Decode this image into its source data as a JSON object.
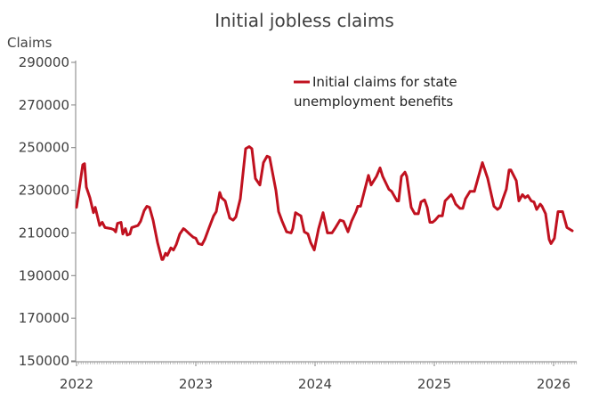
{
  "chart_data": {
    "type": "line",
    "title": "Initial jobless claims",
    "ylabel": "Claims",
    "xlabel": "",
    "ylim": [
      150000,
      290000
    ],
    "xlim": [
      2022.0,
      2026.2
    ],
    "yticks": [
      "150000",
      "170000",
      "190000",
      "210000",
      "230000",
      "250000",
      "270000",
      "290000"
    ],
    "xticks": [
      {
        "label": "2022",
        "value": 2022
      },
      {
        "label": "2023",
        "value": 2023
      },
      {
        "label": "2024",
        "value": 2024
      },
      {
        "label": "2025",
        "value": 2025
      },
      {
        "label": "2026",
        "value": 2026
      }
    ],
    "grid": false,
    "legend_position": "top-right",
    "colors": {
      "line": "#c0111f",
      "axis": "#7f7f7f",
      "text": "#404040"
    },
    "series": [
      {
        "name_lines": [
          "Initial claims for state",
          "unemployment benefits"
        ],
        "points": [
          [
            2022.0,
            222000
          ],
          [
            2022.052,
            242000
          ],
          [
            2022.067,
            242500
          ],
          [
            2022.082,
            231500
          ],
          [
            2022.112,
            226500
          ],
          [
            2022.142,
            219500
          ],
          [
            2022.157,
            222000
          ],
          [
            2022.194,
            213500
          ],
          [
            2022.216,
            215000
          ],
          [
            2022.239,
            212500
          ],
          [
            2022.291,
            212000
          ],
          [
            2022.313,
            211500
          ],
          [
            2022.328,
            210500
          ],
          [
            2022.343,
            214500
          ],
          [
            2022.373,
            215000
          ],
          [
            2022.388,
            209500
          ],
          [
            2022.41,
            212000
          ],
          [
            2022.425,
            209000
          ],
          [
            2022.448,
            209500
          ],
          [
            2022.463,
            212500
          ],
          [
            2022.515,
            213500
          ],
          [
            2022.537,
            215500
          ],
          [
            2022.567,
            220500
          ],
          [
            2022.59,
            222500
          ],
          [
            2022.612,
            222000
          ],
          [
            2022.642,
            216000
          ],
          [
            2022.679,
            205500
          ],
          [
            2022.716,
            197500
          ],
          [
            2022.724,
            197500
          ],
          [
            2022.746,
            200500
          ],
          [
            2022.761,
            199500
          ],
          [
            2022.791,
            203000
          ],
          [
            2022.813,
            202000
          ],
          [
            2022.836,
            204500
          ],
          [
            2022.866,
            209500
          ],
          [
            2022.896,
            212000
          ],
          [
            2022.91,
            211500
          ],
          [
            2022.948,
            209500
          ],
          [
            2022.978,
            208000
          ],
          [
            2023.0,
            207500
          ],
          [
            2023.022,
            205000
          ],
          [
            2023.052,
            204500
          ],
          [
            2023.075,
            207000
          ],
          [
            2023.112,
            212500
          ],
          [
            2023.149,
            218000
          ],
          [
            2023.172,
            220000
          ],
          [
            2023.201,
            229000
          ],
          [
            2023.216,
            226500
          ],
          [
            2023.246,
            225000
          ],
          [
            2023.284,
            217000
          ],
          [
            2023.313,
            216000
          ],
          [
            2023.336,
            217500
          ],
          [
            2023.373,
            226000
          ],
          [
            2023.418,
            249500
          ],
          [
            2023.448,
            250500
          ],
          [
            2023.47,
            249500
          ],
          [
            2023.5,
            235500
          ],
          [
            2023.537,
            232500
          ],
          [
            2023.567,
            243000
          ],
          [
            2023.597,
            246000
          ],
          [
            2023.619,
            245500
          ],
          [
            2023.672,
            230000
          ],
          [
            2023.694,
            220000
          ],
          [
            2023.724,
            215500
          ],
          [
            2023.761,
            210500
          ],
          [
            2023.799,
            210000
          ],
          [
            2023.813,
            212000
          ],
          [
            2023.836,
            219500
          ],
          [
            2023.866,
            218500
          ],
          [
            2023.881,
            218000
          ],
          [
            2023.91,
            210500
          ],
          [
            2023.94,
            209500
          ],
          [
            2023.963,
            205500
          ],
          [
            2023.993,
            202000
          ],
          [
            2024.03,
            212000
          ],
          [
            2024.067,
            219500
          ],
          [
            2024.104,
            210000
          ],
          [
            2024.142,
            210000
          ],
          [
            2024.172,
            212500
          ],
          [
            2024.209,
            216000
          ],
          [
            2024.239,
            215500
          ],
          [
            2024.276,
            210500
          ],
          [
            2024.306,
            215500
          ],
          [
            2024.343,
            220000
          ],
          [
            2024.358,
            222500
          ],
          [
            2024.381,
            222500
          ],
          [
            2024.418,
            230500
          ],
          [
            2024.448,
            237000
          ],
          [
            2024.47,
            232500
          ],
          [
            2024.515,
            236500
          ],
          [
            2024.545,
            240500
          ],
          [
            2024.567,
            236500
          ],
          [
            2024.619,
            230500
          ],
          [
            2024.642,
            229500
          ],
          [
            2024.687,
            225000
          ],
          [
            2024.701,
            225000
          ],
          [
            2024.724,
            236500
          ],
          [
            2024.754,
            238500
          ],
          [
            2024.769,
            236500
          ],
          [
            2024.806,
            222000
          ],
          [
            2024.836,
            219000
          ],
          [
            2024.866,
            219000
          ],
          [
            2024.888,
            224500
          ],
          [
            2024.918,
            225500
          ],
          [
            2024.94,
            222000
          ],
          [
            2024.963,
            215000
          ],
          [
            2024.985,
            215000
          ],
          [
            2025.007,
            216000
          ],
          [
            2025.037,
            218000
          ],
          [
            2025.067,
            218000
          ],
          [
            2025.09,
            225000
          ],
          [
            2025.142,
            228000
          ],
          [
            2025.157,
            226500
          ],
          [
            2025.179,
            223500
          ],
          [
            2025.216,
            221500
          ],
          [
            2025.239,
            221500
          ],
          [
            2025.261,
            226000
          ],
          [
            2025.299,
            229500
          ],
          [
            2025.336,
            229500
          ],
          [
            2025.403,
            243000
          ],
          [
            2025.448,
            235500
          ],
          [
            2025.5,
            222500
          ],
          [
            2025.53,
            221000
          ],
          [
            2025.552,
            222000
          ],
          [
            2025.575,
            226000
          ],
          [
            2025.604,
            230500
          ],
          [
            2025.627,
            239500
          ],
          [
            2025.642,
            239500
          ],
          [
            2025.687,
            234500
          ],
          [
            2025.709,
            225000
          ],
          [
            2025.739,
            228000
          ],
          [
            2025.761,
            226500
          ],
          [
            2025.784,
            227500
          ],
          [
            2025.813,
            225000
          ],
          [
            2025.836,
            224500
          ],
          [
            2025.858,
            221000
          ],
          [
            2025.888,
            223500
          ],
          [
            2025.903,
            222500
          ],
          [
            2025.933,
            219000
          ],
          [
            2025.963,
            207000
          ],
          [
            2025.978,
            205000
          ],
          [
            2026.007,
            207500
          ],
          [
            2026.037,
            220000
          ],
          [
            2026.075,
            220000
          ],
          [
            2026.112,
            212500
          ],
          [
            2026.157,
            211000
          ]
        ]
      }
    ]
  }
}
